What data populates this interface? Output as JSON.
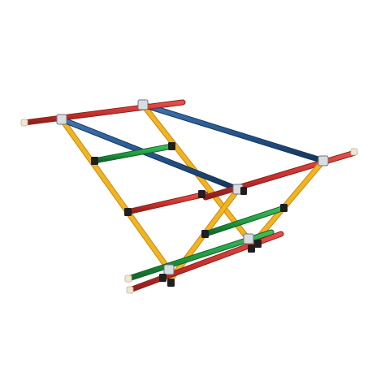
{
  "image": {
    "subject": "climbing-frame",
    "colors": {
      "red": "#c7312c",
      "blue": "#23538a",
      "green": "#1f9a3f",
      "yellow": "#f1b51d",
      "yellow_shadow": "#c9861a",
      "connector": "#1f1f1f",
      "clamp": "#d9dde2",
      "end_cap": "#f0e6d2",
      "background": "#ffffff"
    }
  }
}
